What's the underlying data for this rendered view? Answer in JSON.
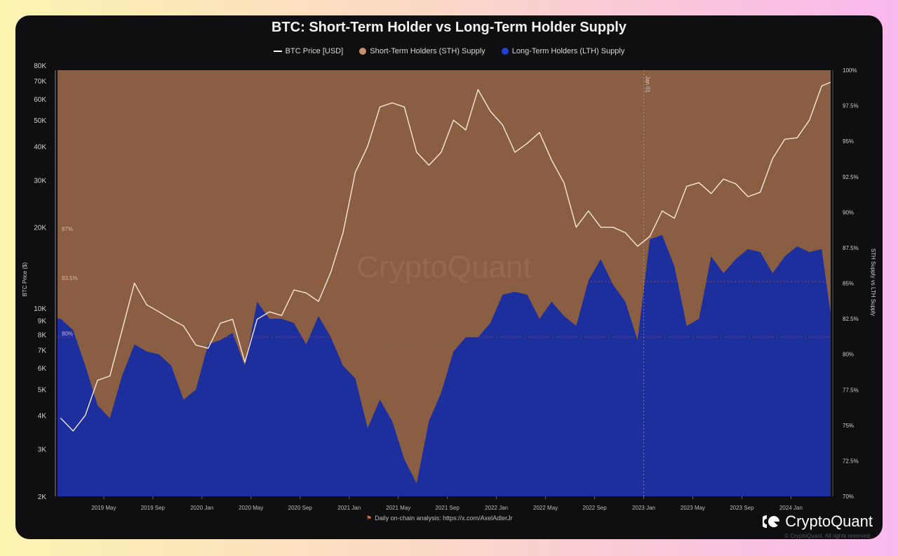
{
  "chart_data": {
    "type": "area",
    "title": "BTC: Short-Term Holder vs Long-Term Holder Supply",
    "legend": [
      {
        "label": "BTC Price [USD]",
        "color": "#ffffff"
      },
      {
        "label": "Short-Term Holders (STH) Supply",
        "color": "#c9926c"
      },
      {
        "label": "Long-Term Holders (LTH) Supply",
        "color": "#2540d0"
      }
    ],
    "legend_placement": "top-center",
    "ylabel_left": "BTC Price ($)",
    "ylabel_right": "STH Supply vs LTH Supply",
    "y_left_scale": "log",
    "y_left_range": [
      2000,
      80000
    ],
    "y_left_ticks": [
      {
        "v": 80000,
        "l": "80K"
      },
      {
        "v": 70000,
        "l": "70K"
      },
      {
        "v": 60000,
        "l": "60K"
      },
      {
        "v": 50000,
        "l": "50K"
      },
      {
        "v": 40000,
        "l": "40K"
      },
      {
        "v": 30000,
        "l": "30K"
      },
      {
        "v": 20000,
        "l": "20K"
      },
      {
        "v": 10000,
        "l": "10K"
      },
      {
        "v": 9000,
        "l": "9K"
      },
      {
        "v": 8000,
        "l": "8K"
      },
      {
        "v": 7000,
        "l": "7K"
      },
      {
        "v": 6000,
        "l": "6K"
      },
      {
        "v": 5000,
        "l": "5K"
      },
      {
        "v": 4000,
        "l": "4K"
      },
      {
        "v": 3000,
        "l": "3K"
      },
      {
        "v": 2000,
        "l": "2K"
      }
    ],
    "y_right_range": [
      70,
      100
    ],
    "y_right_ticks": [
      {
        "v": 100,
        "l": "100%"
      },
      {
        "v": 97.5,
        "l": "97.5%"
      },
      {
        "v": 95,
        "l": "95%"
      },
      {
        "v": 92.5,
        "l": "92.5%"
      },
      {
        "v": 90,
        "l": "90%"
      },
      {
        "v": 87.5,
        "l": "87.5%"
      },
      {
        "v": 85,
        "l": "85%"
      },
      {
        "v": 82.5,
        "l": "82.5%"
      },
      {
        "v": 80,
        "l": "80%"
      },
      {
        "v": 77.5,
        "l": "77.5%"
      },
      {
        "v": 75,
        "l": "75%"
      },
      {
        "v": 72.5,
        "l": "72.5%"
      },
      {
        "v": 70,
        "l": "70%"
      }
    ],
    "x_ticks": [
      {
        "d": "2019-05",
        "l": "2019 May"
      },
      {
        "d": "2019-09",
        "l": "2019 Sep"
      },
      {
        "d": "2020-01",
        "l": "2020 Jan"
      },
      {
        "d": "2020-05",
        "l": "2020 May"
      },
      {
        "d": "2020-09",
        "l": "2020 Sep"
      },
      {
        "d": "2021-01",
        "l": "2021 Jan"
      },
      {
        "d": "2021-05",
        "l": "2021 May"
      },
      {
        "d": "2021-09",
        "l": "2021 Sep"
      },
      {
        "d": "2022-01",
        "l": "2022 Jan"
      },
      {
        "d": "2022-05",
        "l": "2022 May"
      },
      {
        "d": "2022-09",
        "l": "2022 Sep"
      },
      {
        "d": "2023-01",
        "l": "2023 Jan"
      },
      {
        "d": "2023-05",
        "l": "2023 May"
      },
      {
        "d": "2023-09",
        "l": "2023 Sep"
      },
      {
        "d": "2024-01",
        "l": "2024 Jan"
      }
    ],
    "x_range": [
      "2019-01-08",
      "2024-04-08"
    ],
    "dates": [
      "2019-01",
      "2019-02",
      "2019-03",
      "2019-04",
      "2019-05",
      "2019-06",
      "2019-07",
      "2019-08",
      "2019-09",
      "2019-10",
      "2019-11",
      "2019-12",
      "2020-01",
      "2020-02",
      "2020-03",
      "2020-04",
      "2020-05",
      "2020-06",
      "2020-07",
      "2020-08",
      "2020-09",
      "2020-10",
      "2020-11",
      "2020-12",
      "2021-01",
      "2021-02",
      "2021-03",
      "2021-04",
      "2021-05",
      "2021-06",
      "2021-07",
      "2021-08",
      "2021-09",
      "2021-10",
      "2021-11",
      "2021-12",
      "2022-01",
      "2022-02",
      "2022-03",
      "2022-04",
      "2022-05",
      "2022-06",
      "2022-07",
      "2022-08",
      "2022-09",
      "2022-10",
      "2022-11",
      "2022-12",
      "2023-01",
      "2023-02",
      "2023-03",
      "2023-04",
      "2023-05",
      "2023-06",
      "2023-07",
      "2023-08",
      "2023-09",
      "2023-10",
      "2023-11",
      "2023-12",
      "2024-01",
      "2024-02",
      "2024-03",
      "2024-04"
    ],
    "series": [
      {
        "name": "BTC Price [USD]",
        "type": "line",
        "axis": "left",
        "values": [
          3900,
          3500,
          4000,
          5400,
          5600,
          8300,
          12400,
          10300,
          9700,
          9100,
          8600,
          7300,
          7100,
          8800,
          9100,
          6300,
          9100,
          9700,
          9400,
          11700,
          11400,
          10600,
          13600,
          19100,
          32000,
          40000,
          56000,
          58000,
          56000,
          38000,
          34000,
          38000,
          50000,
          46000,
          65000,
          54000,
          48000,
          38000,
          41000,
          45000,
          35500,
          29300,
          20000,
          23000,
          20000,
          20000,
          19100,
          17000,
          18500,
          23000,
          21600,
          28400,
          29300,
          26700,
          30200,
          29000,
          26000,
          27000,
          36000,
          42500,
          43000,
          50000,
          67000,
          70000
        ]
      },
      {
        "name": "Long-Term Holders (LTH) Supply",
        "type": "area",
        "axis": "right",
        "unit": "%",
        "values": [
          82.5,
          81.7,
          79.2,
          76.4,
          75.5,
          78.5,
          80.7,
          80.2,
          80.0,
          79.2,
          76.8,
          77.5,
          80.7,
          81.0,
          81.5,
          79.2,
          83.7,
          82.5,
          82.5,
          82.2,
          80.7,
          82.7,
          81.2,
          79.2,
          78.3,
          74.8,
          76.8,
          75.3,
          72.6,
          70.9,
          75.3,
          77.3,
          80.2,
          81.2,
          81.2,
          82.2,
          84.2,
          84.4,
          84.2,
          82.5,
          83.7,
          82.7,
          82.0,
          85.2,
          86.7,
          84.9,
          83.7,
          81.0,
          88.1,
          88.4,
          86.2,
          82.0,
          82.5,
          86.9,
          85.7,
          86.7,
          87.4,
          87.2,
          85.7,
          86.9,
          87.6,
          87.2,
          87.4,
          81.2
        ]
      },
      {
        "name": "Short-Term Holders (STH) Supply",
        "type": "area",
        "axis": "right",
        "note": "fills remainder to 100%"
      }
    ],
    "reference_lines": [
      {
        "label": "87%"
      },
      {
        "label": "83.5%"
      },
      {
        "label": "80%"
      }
    ],
    "event_marker": {
      "date": "2023-01",
      "label": "Jan 01"
    },
    "watermark": "CryptoQuant",
    "grid": false
  },
  "footer": {
    "source": "Daily on-chain analysis: https://x.com/AxelAdlerJr",
    "brand": "CryptoQuant",
    "copyright": "© CryptoQuant. All rights reserved."
  }
}
